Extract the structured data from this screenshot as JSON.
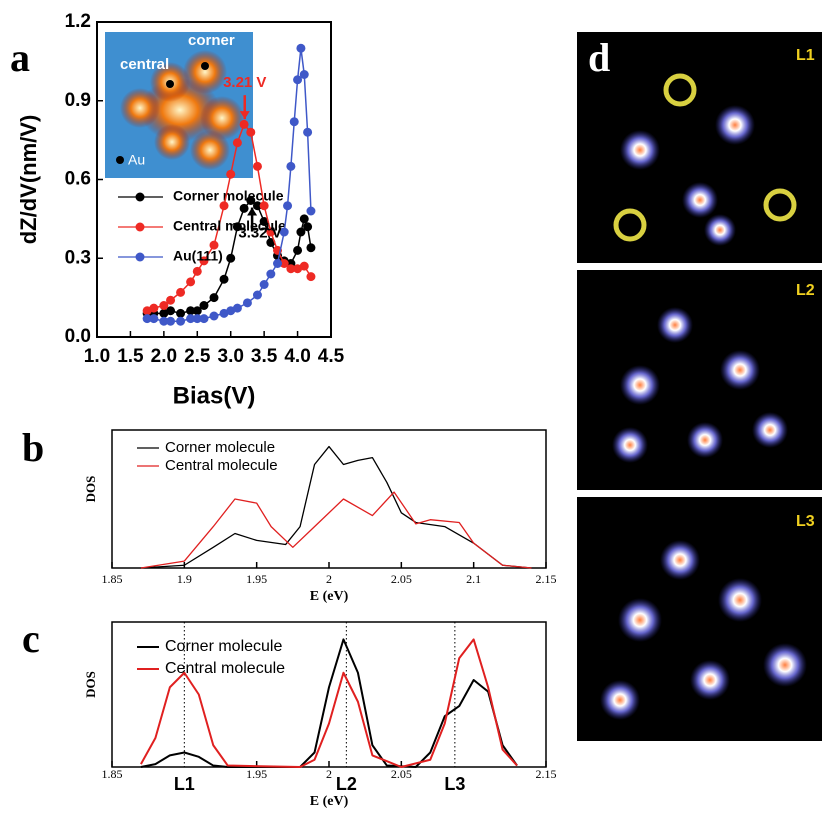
{
  "chart_data": [
    {
      "type": "line",
      "panel_label": "a",
      "xlabel": "Bias(V)",
      "ylabel": "dZ/dV(nm/V)",
      "markers": true,
      "xlim": [
        1.0,
        4.5
      ],
      "xticks": [
        {
          "value": 1,
          "label": "1.0"
        },
        1.5,
        {
          "value": 2,
          "label": "2.0"
        },
        2.5,
        {
          "value": 3,
          "label": "3.0"
        },
        3.5,
        {
          "value": 4,
          "label": "4.0"
        },
        4.5
      ],
      "ylim": [
        0,
        1.2
      ],
      "yticks": [
        {
          "value": 0,
          "label": "0.0"
        },
        0.3,
        0.6,
        0.9,
        1.2
      ],
      "series": [
        {
          "name": "Corner molecule",
          "color": "#000000",
          "x": [
            1.75,
            1.85,
            2.0,
            2.1,
            2.25,
            2.4,
            2.5,
            2.6,
            2.75,
            2.9,
            3.0,
            3.1,
            3.2,
            3.3,
            3.4,
            3.5,
            3.6,
            3.7,
            3.8,
            3.9,
            4.0,
            4.05,
            4.1,
            4.15,
            4.2
          ],
          "values": [
            0.09,
            0.09,
            0.09,
            0.1,
            0.09,
            0.1,
            0.1,
            0.12,
            0.15,
            0.22,
            0.3,
            0.42,
            0.49,
            0.52,
            0.5,
            0.44,
            0.36,
            0.31,
            0.29,
            0.28,
            0.33,
            0.4,
            0.45,
            0.42,
            0.34
          ]
        },
        {
          "name": "Central molecule",
          "color": "#ee2a24",
          "x": [
            1.75,
            1.85,
            2.0,
            2.1,
            2.25,
            2.4,
            2.5,
            2.6,
            2.75,
            2.9,
            3.0,
            3.1,
            3.2,
            3.3,
            3.4,
            3.5,
            3.6,
            3.7,
            3.8,
            3.9,
            4.0,
            4.1,
            4.2
          ],
          "values": [
            0.1,
            0.11,
            0.12,
            0.14,
            0.17,
            0.21,
            0.25,
            0.29,
            0.35,
            0.5,
            0.62,
            0.74,
            0.81,
            0.78,
            0.65,
            0.5,
            0.4,
            0.33,
            0.28,
            0.26,
            0.26,
            0.27,
            0.23
          ]
        },
        {
          "name": "Au(111)",
          "color": "#3f58c8",
          "x": [
            1.75,
            1.85,
            2.0,
            2.1,
            2.25,
            2.4,
            2.5,
            2.6,
            2.75,
            2.9,
            3.0,
            3.1,
            3.25,
            3.4,
            3.5,
            3.6,
            3.7,
            3.8,
            3.85,
            3.9,
            3.95,
            4.0,
            4.05,
            4.1,
            4.15,
            4.2
          ],
          "values": [
            0.07,
            0.07,
            0.06,
            0.06,
            0.06,
            0.07,
            0.07,
            0.07,
            0.08,
            0.09,
            0.1,
            0.11,
            0.13,
            0.16,
            0.2,
            0.24,
            0.28,
            0.4,
            0.5,
            0.65,
            0.82,
            0.98,
            1.1,
            1.0,
            0.78,
            0.48
          ]
        }
      ],
      "annotations": [
        {
          "text": "3.21 V",
          "x": 3.21,
          "color": "#ee2a24"
        },
        {
          "text": "3.32 V",
          "x": 3.32,
          "color": "#000000"
        }
      ],
      "inset_labels": [
        "corner",
        "central",
        "Au"
      ]
    },
    {
      "type": "line",
      "panel_label": "b",
      "xlabel": "E (eV)",
      "ylabel": "DOS",
      "xlim": [
        1.85,
        2.15
      ],
      "xticks": [
        1.85,
        1.9,
        1.95,
        2,
        2.05,
        2.1,
        2.15
      ],
      "ylim": [
        0,
        1
      ],
      "series": [
        {
          "name": "Corner molecule",
          "color": "#000000",
          "x": [
            1.87,
            1.9,
            1.92,
            1.935,
            1.95,
            1.97,
            1.98,
            1.99,
            2.0,
            2.01,
            2.02,
            2.03,
            2.04,
            2.05,
            2.06,
            2.08,
            2.1,
            2.12,
            2.14
          ],
          "values": [
            0,
            0.02,
            0.15,
            0.25,
            0.2,
            0.17,
            0.3,
            0.75,
            0.88,
            0.75,
            0.78,
            0.8,
            0.62,
            0.4,
            0.33,
            0.3,
            0.18,
            0.02,
            0
          ]
        },
        {
          "name": "Central molecule",
          "color": "#e02020",
          "x": [
            1.87,
            1.9,
            1.92,
            1.935,
            1.95,
            1.96,
            1.975,
            1.99,
            2.01,
            2.03,
            2.045,
            2.06,
            2.07,
            2.09,
            2.1,
            2.12,
            2.14
          ],
          "values": [
            0,
            0.05,
            0.3,
            0.5,
            0.47,
            0.3,
            0.15,
            0.3,
            0.5,
            0.38,
            0.55,
            0.32,
            0.35,
            0.33,
            0.18,
            0.02,
            0
          ]
        }
      ]
    },
    {
      "type": "line",
      "panel_label": "c",
      "xlabel": "E (eV)",
      "ylabel": "DOS",
      "xlim": [
        1.85,
        2.15
      ],
      "xticks": [
        1.85,
        1.95,
        2,
        2.05,
        2.15
      ],
      "ylim": [
        0,
        1
      ],
      "series": [
        {
          "name": "Corner molecule",
          "color": "#000000",
          "x": [
            1.87,
            1.88,
            1.89,
            1.9,
            1.91,
            1.92,
            1.93,
            1.98,
            1.99,
            2.0,
            2.01,
            2.02,
            2.03,
            2.04,
            2.06,
            2.07,
            2.08,
            2.09,
            2.1,
            2.11,
            2.12,
            2.13
          ],
          "values": [
            0,
            0.02,
            0.08,
            0.1,
            0.07,
            0.01,
            0,
            0,
            0.1,
            0.55,
            0.88,
            0.65,
            0.15,
            0.01,
            0,
            0.1,
            0.35,
            0.42,
            0.6,
            0.52,
            0.15,
            0.01
          ]
        },
        {
          "name": "Central molecule",
          "color": "#e02020",
          "x": [
            1.87,
            1.88,
            1.89,
            1.9,
            1.91,
            1.92,
            1.93,
            1.98,
            1.99,
            2.0,
            2.01,
            2.02,
            2.03,
            2.05,
            2.07,
            2.08,
            2.09,
            2.1,
            2.11,
            2.12,
            2.13
          ],
          "values": [
            0.02,
            0.2,
            0.55,
            0.65,
            0.5,
            0.15,
            0.01,
            0,
            0.05,
            0.3,
            0.65,
            0.45,
            0.08,
            0,
            0.05,
            0.3,
            0.75,
            0.88,
            0.55,
            0.12,
            0.01
          ]
        }
      ],
      "levels": [
        {
          "label": "L1",
          "x": 1.9
        },
        {
          "label": "L2",
          "x": 2.012
        },
        {
          "label": "L3",
          "x": 2.087
        }
      ]
    }
  ],
  "image_panel": {
    "label": "d",
    "frames": [
      "L1",
      "L2",
      "L3"
    ]
  }
}
